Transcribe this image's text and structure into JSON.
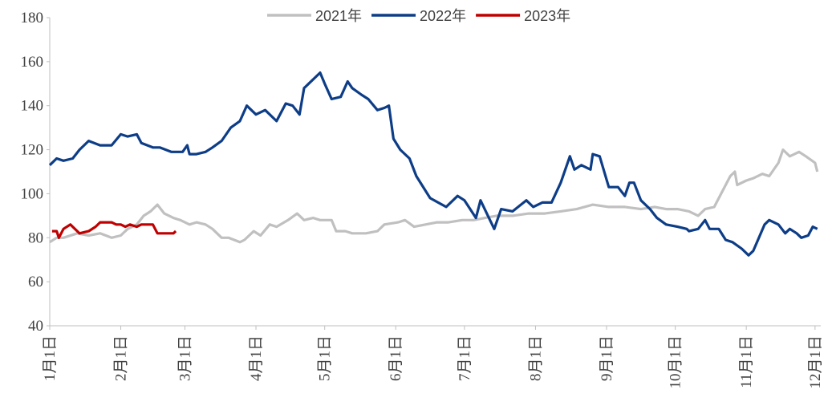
{
  "chart_data": {
    "type": "line",
    "xlim": [
      0,
      336.5
    ],
    "xticks": [
      {
        "value": 0,
        "label": "1月1日"
      },
      {
        "value": 31,
        "label": "2月1日"
      },
      {
        "value": 59,
        "label": "3月1日"
      },
      {
        "value": 90,
        "label": "4月1日"
      },
      {
        "value": 120,
        "label": "5月1日"
      },
      {
        "value": 151,
        "label": "6月1日"
      },
      {
        "value": 181,
        "label": "7月1日"
      },
      {
        "value": 212,
        "label": "8月1日"
      },
      {
        "value": 243,
        "label": "9月1日"
      },
      {
        "value": 273,
        "label": "10月1日"
      },
      {
        "value": 304,
        "label": "11月1日"
      },
      {
        "value": 334,
        "label": "12月1日"
      }
    ],
    "ylim": [
      40,
      180
    ],
    "yticks": [
      40,
      60,
      80,
      100,
      120,
      140,
      160,
      180
    ],
    "series": [
      {
        "name": "2021年",
        "color": "#c0c0c0",
        "x": [
          0,
          3,
          6,
          12,
          17,
          22,
          27,
          31,
          34,
          38,
          41,
          44,
          47,
          50,
          54,
          57,
          61,
          64,
          68,
          71,
          75,
          78,
          83,
          85,
          89,
          92,
          96,
          99,
          104,
          108,
          111,
          115,
          118,
          123,
          125,
          129,
          132,
          138,
          143,
          146,
          152,
          155,
          159,
          164,
          169,
          174,
          180,
          185,
          190,
          195,
          202,
          209,
          216,
          223,
          230,
          237,
          244,
          251,
          258,
          264,
          269,
          274,
          279,
          283,
          286,
          290,
          293,
          297,
          299,
          300,
          304,
          307,
          311,
          314,
          318,
          320,
          323,
          327,
          330,
          334,
          335
        ],
        "values": [
          78,
          80,
          80,
          82,
          81,
          82,
          80,
          81,
          84,
          86,
          90,
          92,
          95,
          91,
          89,
          88,
          86,
          87,
          86,
          84,
          80,
          80,
          78,
          79,
          83,
          81,
          86,
          85,
          88,
          91,
          88,
          89,
          88,
          88,
          83,
          83,
          82,
          82,
          83,
          86,
          87,
          88,
          85,
          86,
          87,
          87,
          88,
          88,
          89,
          90,
          90,
          91,
          91,
          92,
          93,
          95,
          94,
          94,
          93,
          94,
          93,
          93,
          92,
          90,
          93,
          94,
          100,
          108,
          110,
          104,
          106,
          107,
          109,
          108,
          114,
          120,
          117,
          119,
          117,
          114,
          110
        ]
      },
      {
        "name": "2022年",
        "color": "#0d3d87",
        "x": [
          0,
          3,
          6,
          10,
          13,
          17,
          22,
          27,
          31,
          34,
          38,
          40,
          45,
          48,
          53,
          58,
          60,
          61,
          64,
          68,
          71,
          75,
          79,
          83,
          86,
          90,
          94,
          99,
          103,
          106,
          109,
          111,
          118,
          120,
          123,
          127,
          130,
          132,
          136,
          139,
          143,
          146,
          148,
          150,
          153,
          157,
          160,
          166,
          173,
          178,
          181,
          186,
          188,
          194,
          197,
          202,
          208,
          211,
          215,
          219,
          223,
          227,
          229,
          232,
          236,
          237,
          240,
          244,
          248,
          251,
          253,
          255,
          258,
          262,
          265,
          269,
          274,
          278,
          279,
          283,
          286,
          288,
          292,
          295,
          298,
          302,
          305,
          307,
          312,
          314,
          318,
          321,
          323,
          326,
          328,
          331,
          333,
          335
        ],
        "values": [
          113,
          116,
          115,
          116,
          120,
          124,
          122,
          122,
          127,
          126,
          127,
          123,
          121,
          121,
          119,
          119,
          122,
          118,
          118,
          119,
          121,
          124,
          130,
          133,
          140,
          136,
          138,
          133,
          141,
          140,
          136,
          148,
          155,
          150,
          143,
          144,
          151,
          148,
          145,
          143,
          138,
          139,
          140,
          125,
          120,
          116,
          108,
          98,
          94,
          99,
          97,
          89,
          97,
          84,
          93,
          92,
          97,
          94,
          96,
          96,
          105,
          117,
          111,
          113,
          111,
          118,
          117,
          103,
          103,
          99,
          105,
          105,
          97,
          93,
          89,
          86,
          85,
          84,
          83,
          84,
          88,
          84,
          84,
          79,
          78,
          75,
          72,
          74,
          86,
          88,
          86,
          82,
          84,
          82,
          80,
          81,
          85,
          84
        ]
      },
      {
        "name": "2023年",
        "color": "#c00000",
        "x": [
          1,
          3,
          4,
          6,
          9,
          12,
          13,
          17,
          20,
          22,
          25,
          27,
          29,
          31,
          33,
          35,
          38,
          40,
          45,
          47,
          50,
          54,
          55
        ],
        "values": [
          83,
          83,
          80,
          84,
          86,
          83,
          82,
          83,
          85,
          87,
          87,
          87,
          86,
          86,
          85,
          86,
          85,
          86,
          86,
          82,
          82,
          82,
          83
        ]
      }
    ]
  }
}
